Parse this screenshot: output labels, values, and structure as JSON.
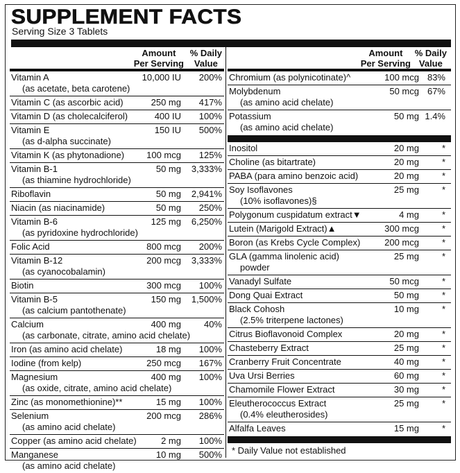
{
  "title": "SUPPLEMENT FACTS",
  "serving_size": "Serving Size 3 Tablets",
  "headers": {
    "amount_line1": "Amount",
    "amount_line2": "Per Serving",
    "dv_line1": "% Daily",
    "dv_line2": "Value"
  },
  "left_items": [
    {
      "name": "Vitamin A",
      "sub": "(as acetate, beta carotene)",
      "amount": "10,000 IU",
      "dv": "200%"
    },
    {
      "name": "Vitamin C (as ascorbic acid)",
      "amount": "250 mg",
      "dv": "417%"
    },
    {
      "name": "Vitamin D (as cholecalciferol)",
      "amount": "400 IU",
      "dv": "100%"
    },
    {
      "name": "Vitamin E",
      "sub": "(as d-alpha succinate)",
      "amount": "150 IU",
      "dv": "500%"
    },
    {
      "name": "Vitamin K (as phytonadione)",
      "amount": "100 mcg",
      "dv": "125%"
    },
    {
      "name": "Vitamin B-1",
      "sub": "(as thiamine hydrochloride)",
      "amount": "50 mg",
      "dv": "3,333%"
    },
    {
      "name": "Riboflavin",
      "amount": "50 mg",
      "dv": "2,941%"
    },
    {
      "name": "Niacin (as niacinamide)",
      "amount": "50 mg",
      "dv": "250%"
    },
    {
      "name": "Vitamin B-6",
      "sub": "(as pyridoxine hydrochloride)",
      "amount": "125 mg",
      "dv": "6,250%"
    },
    {
      "name": "Folic Acid",
      "amount": "800 mcg",
      "dv": "200%"
    },
    {
      "name": "Vitamin B-12",
      "sub": "(as cyanocobalamin)",
      "amount": "200 mcg",
      "dv": "3,333%"
    },
    {
      "name": "Biotin",
      "amount": "300 mcg",
      "dv": "100%"
    },
    {
      "name": "Vitamin B-5",
      "sub": "(as calcium pantothenate)",
      "amount": "150 mg",
      "dv": "1,500%"
    },
    {
      "name": "Calcium",
      "sub": "(as carbonate, citrate, amino acid chelate)",
      "amount": "400 mg",
      "dv": "40%"
    },
    {
      "name": "Iron (as amino acid chelate)",
      "amount": "18 mg",
      "dv": "100%"
    },
    {
      "name": "Iodine (from kelp)",
      "amount": "250 mcg",
      "dv": "167%"
    },
    {
      "name": "Magnesium",
      "sub": "(as oxide, citrate, amino acid chelate)",
      "amount": "400 mg",
      "dv": "100%"
    },
    {
      "name": "Zinc (as monomethionine)**",
      "amount": "15 mg",
      "dv": "100%"
    },
    {
      "name": "Selenium",
      "sub": "(as amino acid chelate)",
      "amount": "200 mcg",
      "dv": "286%"
    },
    {
      "name": "Copper (as amino acid chelate)",
      "amount": "2 mg",
      "dv": "100%"
    },
    {
      "name": "Manganese",
      "sub": "(as amino acid chelate)",
      "amount": "10 mg",
      "dv": "500%"
    }
  ],
  "right_items_a": [
    {
      "name": "Chromium (as polynicotinate)^",
      "amount": "100 mcg",
      "dv": "83%"
    },
    {
      "name": "Molybdenum",
      "sub": "(as amino acid chelate)",
      "amount": "50 mcg",
      "dv": "67%"
    },
    {
      "name": "Potassium",
      "sub": "(as amino acid chelate)",
      "amount": "50 mg",
      "dv": "1.4%"
    }
  ],
  "right_items_b": [
    {
      "name": "Inositol",
      "amount": "20 mg",
      "dv": "*"
    },
    {
      "name": "Choline (as bitartrate)",
      "amount": "20 mg",
      "dv": "*"
    },
    {
      "name": "PABA (para amino benzoic acid)",
      "amount": "20 mg",
      "dv": "*"
    },
    {
      "name": "Soy Isoflavones",
      "sub": "(10% isoflavones)§",
      "amount": "25 mg",
      "dv": "*"
    },
    {
      "name": "Polygonum cuspidatum extract▼",
      "amount": "4 mg",
      "dv": "*"
    },
    {
      "name": "Lutein (Marigold Extract)▲",
      "amount": "300 mcg",
      "dv": "*"
    },
    {
      "name": "Boron (as Krebs Cycle Complex)",
      "amount": "200 mcg",
      "dv": "*"
    },
    {
      "name": "GLA (gamma linolenic acid)",
      "sub": "powder",
      "amount": "25 mg",
      "dv": "*"
    },
    {
      "name": "Vanadyl Sulfate",
      "amount": "50 mcg",
      "dv": "*"
    },
    {
      "name": "Dong Quai Extract",
      "amount": "50 mg",
      "dv": "*"
    },
    {
      "name": "Black Cohosh",
      "sub": "(2.5% triterpene lactones)",
      "amount": "10 mg",
      "dv": "*"
    },
    {
      "name": "Citrus Bioflavonoid Complex",
      "amount": "20 mg",
      "dv": "*"
    },
    {
      "name": "Chasteberry Extract",
      "amount": "25 mg",
      "dv": "*"
    },
    {
      "name": "Cranberry Fruit Concentrate",
      "amount": "40 mg",
      "dv": "*"
    },
    {
      "name": "Uva Ursi Berries",
      "amount": "60 mg",
      "dv": "*"
    },
    {
      "name": "Chamomile Flower Extract",
      "amount": "30 mg",
      "dv": "*"
    },
    {
      "name": "Eleutherococcus Extract",
      "sub": "(0.4% eleutherosides)",
      "amount": "25 mg",
      "dv": "*"
    },
    {
      "name": "Alfalfa Leaves",
      "amount": "15 mg",
      "dv": "*"
    }
  ],
  "footnote": "* Daily Value not established"
}
